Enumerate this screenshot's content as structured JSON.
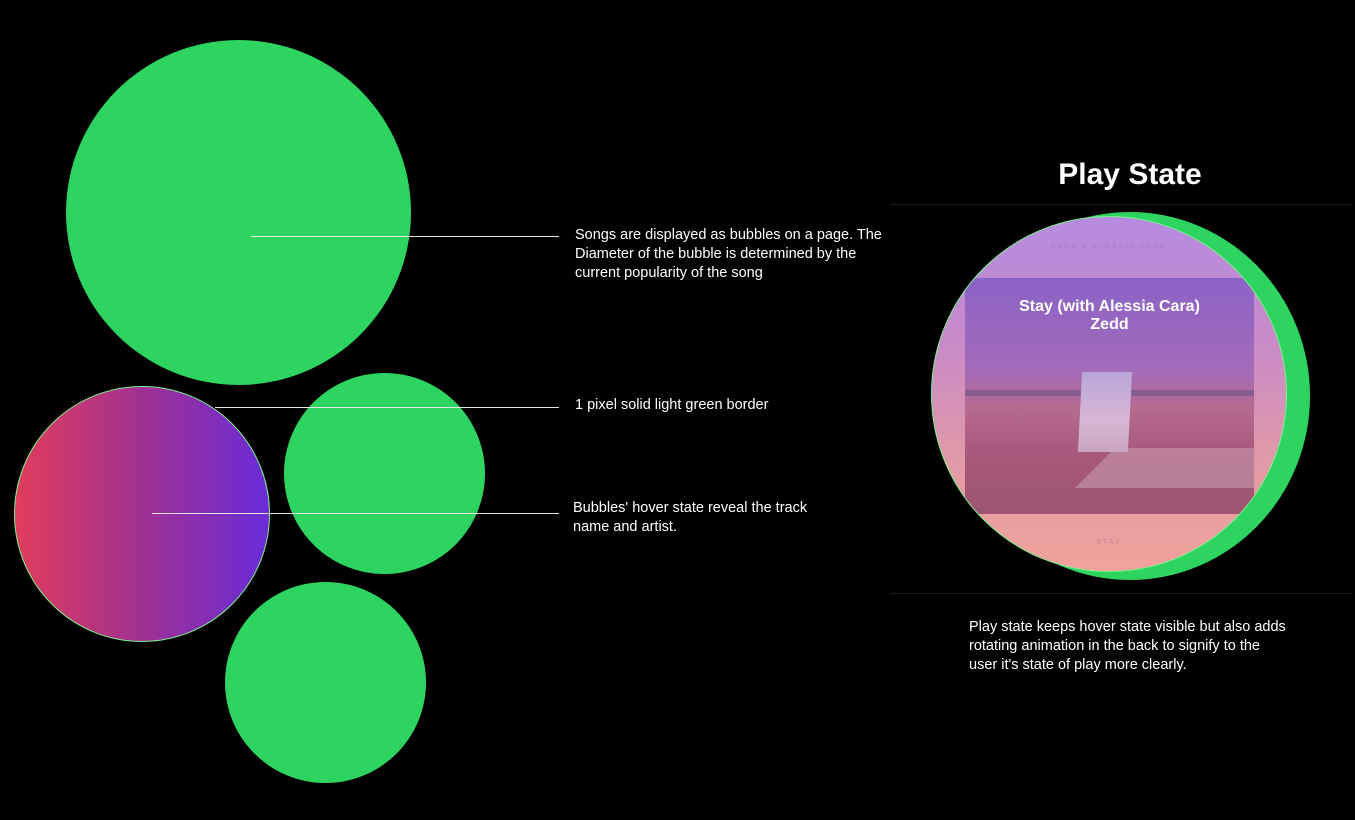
{
  "colors": {
    "background": "#000000",
    "bubble_green": "#2dd45f",
    "border_light_green": "#7ef08f",
    "hover_gradient_start": "#e23d5c",
    "hover_gradient_end": "#6a2bd8",
    "text": "#ffffff"
  },
  "annotations": {
    "bubbles_size": "Songs are displayed as bubbles on a page. The Diameter of the bubble is determined by the current popularity of the song",
    "border": "1 pixel solid light green border",
    "hover": "Bubbles' hover state reveal the track name and artist."
  },
  "play_state": {
    "heading": "Play State",
    "track_title": "Stay (with Alessia Cara)",
    "track_artist": "Zedd",
    "cover_top_text": "ZEDD & ALESSIA CARA",
    "cover_bottom_text": "STAY",
    "description": "Play state keeps hover state visible but also adds rotating animation in the back to signify to the user it's state of play more clearly."
  }
}
